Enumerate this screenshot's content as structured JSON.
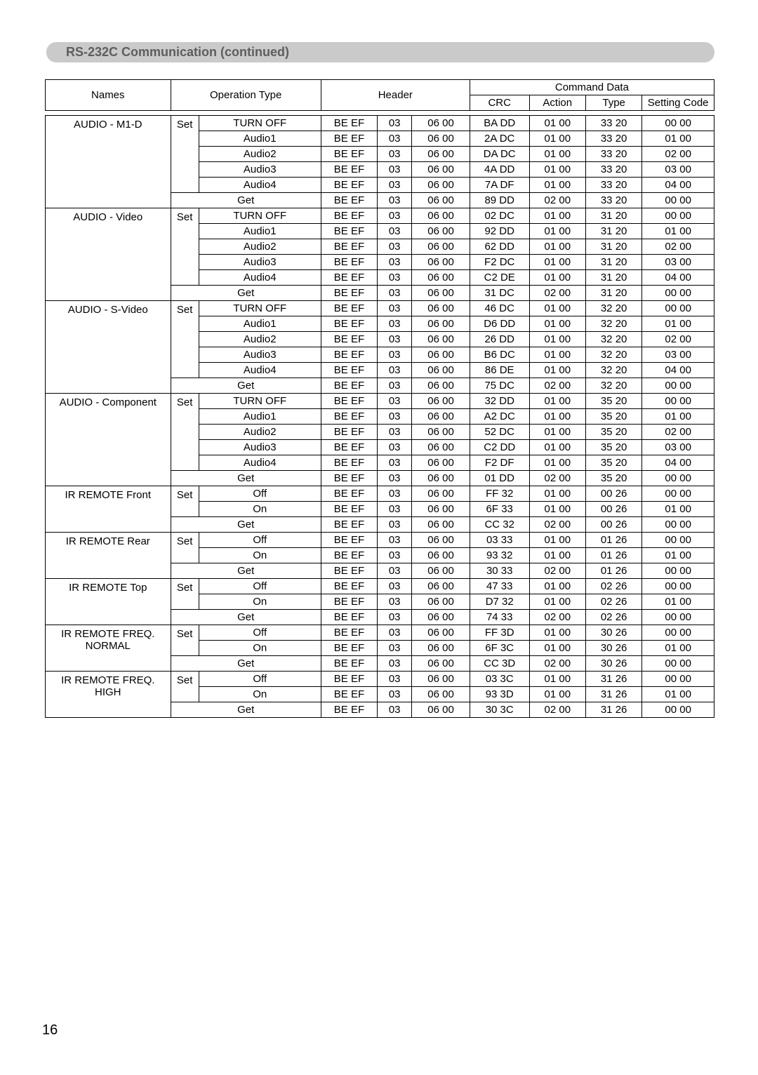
{
  "section_title": "RS-232C Communication (continued)",
  "page_number": "16",
  "colors": {
    "header_bg": "#cacaca",
    "header_text": "#5e5e5e",
    "page_bg": "#ffffff",
    "border": "#000000"
  },
  "header": {
    "names": "Names",
    "operation_type": "Operation Type",
    "header": "Header",
    "command_data": "Command Data",
    "crc": "CRC",
    "action": "Action",
    "type": "Type",
    "setting_code": "Setting Code"
  },
  "groups": [
    {
      "name": "AUDIO - M1-D",
      "set_label": "Set",
      "rows": [
        {
          "op": "TURN OFF",
          "h1": "BE  EF",
          "h2": "03",
          "h3": "06  00",
          "crc": "BA DD",
          "action": "01 00",
          "type": "33 20",
          "sc": "00 00"
        },
        {
          "op": "Audio1",
          "h1": "BE  EF",
          "h2": "03",
          "h3": "06  00",
          "crc": "2A DC",
          "action": "01 00",
          "type": "33 20",
          "sc": "01 00"
        },
        {
          "op": "Audio2",
          "h1": "BE  EF",
          "h2": "03",
          "h3": "06  00",
          "crc": "DA DC",
          "action": "01 00",
          "type": "33 20",
          "sc": "02 00"
        },
        {
          "op": "Audio3",
          "h1": "BE  EF",
          "h2": "03",
          "h3": "06  00",
          "crc": "4A DD",
          "action": "01 00",
          "type": "33 20",
          "sc": "03 00"
        },
        {
          "op": "Audio4",
          "h1": "BE  EF",
          "h2": "03",
          "h3": "06  00",
          "crc": "7A DF",
          "action": "01 00",
          "type": "33 20",
          "sc": "04 00"
        }
      ],
      "get_row": {
        "op": "Get",
        "h1": "BE  EF",
        "h2": "03",
        "h3": "06  00",
        "crc": "89 DD",
        "action": "02 00",
        "type": "33 20",
        "sc": "00 00"
      }
    },
    {
      "name": "AUDIO - Video",
      "set_label": "Set",
      "rows": [
        {
          "op": "TURN OFF",
          "h1": "BE  EF",
          "h2": "03",
          "h3": "06  00",
          "crc": "02 DC",
          "action": "01 00",
          "type": "31 20",
          "sc": "00 00"
        },
        {
          "op": "Audio1",
          "h1": "BE  EF",
          "h2": "03",
          "h3": "06  00",
          "crc": "92 DD",
          "action": "01 00",
          "type": "31 20",
          "sc": "01 00"
        },
        {
          "op": "Audio2",
          "h1": "BE  EF",
          "h2": "03",
          "h3": "06  00",
          "crc": "62 DD",
          "action": "01 00",
          "type": "31 20",
          "sc": "02 00"
        },
        {
          "op": "Audio3",
          "h1": "BE  EF",
          "h2": "03",
          "h3": "06  00",
          "crc": "F2 DC",
          "action": "01 00",
          "type": "31 20",
          "sc": "03 00"
        },
        {
          "op": "Audio4",
          "h1": "BE  EF",
          "h2": "03",
          "h3": "06  00",
          "crc": "C2 DE",
          "action": "01 00",
          "type": "31 20",
          "sc": "04 00"
        }
      ],
      "get_row": {
        "op": "Get",
        "h1": "BE  EF",
        "h2": "03",
        "h3": "06  00",
        "crc": "31 DC",
        "action": "02 00",
        "type": "31 20",
        "sc": "00 00"
      }
    },
    {
      "name": "AUDIO - S-Video",
      "set_label": "Set",
      "rows": [
        {
          "op": "TURN OFF",
          "h1": "BE  EF",
          "h2": "03",
          "h3": "06  00",
          "crc": "46 DC",
          "action": "01 00",
          "type": "32 20",
          "sc": "00 00"
        },
        {
          "op": "Audio1",
          "h1": "BE  EF",
          "h2": "03",
          "h3": "06  00",
          "crc": "D6 DD",
          "action": "01 00",
          "type": "32 20",
          "sc": "01 00"
        },
        {
          "op": "Audio2",
          "h1": "BE  EF",
          "h2": "03",
          "h3": "06  00",
          "crc": "26 DD",
          "action": "01 00",
          "type": "32 20",
          "sc": "02 00"
        },
        {
          "op": "Audio3",
          "h1": "BE  EF",
          "h2": "03",
          "h3": "06  00",
          "crc": "B6 DC",
          "action": "01 00",
          "type": "32 20",
          "sc": "03 00"
        },
        {
          "op": "Audio4",
          "h1": "BE  EF",
          "h2": "03",
          "h3": "06  00",
          "crc": "86 DE",
          "action": "01 00",
          "type": "32 20",
          "sc": "04 00"
        }
      ],
      "get_row": {
        "op": "Get",
        "h1": "BE  EF",
        "h2": "03",
        "h3": "06  00",
        "crc": "75 DC",
        "action": "02 00",
        "type": "32 20",
        "sc": "00 00"
      }
    },
    {
      "name": "AUDIO - Component",
      "set_label": "Set",
      "rows": [
        {
          "op": "TURN OFF",
          "h1": "BE  EF",
          "h2": "03",
          "h3": "06  00",
          "crc": "32 DD",
          "action": "01 00",
          "type": "35 20",
          "sc": "00 00"
        },
        {
          "op": "Audio1",
          "h1": "BE  EF",
          "h2": "03",
          "h3": "06  00",
          "crc": "A2 DC",
          "action": "01 00",
          "type": "35 20",
          "sc": "01 00"
        },
        {
          "op": "Audio2",
          "h1": "BE  EF",
          "h2": "03",
          "h3": "06  00",
          "crc": "52 DC",
          "action": "01 00",
          "type": "35 20",
          "sc": "02 00"
        },
        {
          "op": "Audio3",
          "h1": "BE  EF",
          "h2": "03",
          "h3": "06  00",
          "crc": "C2 DD",
          "action": "01 00",
          "type": "35 20",
          "sc": "03 00"
        },
        {
          "op": "Audio4",
          "h1": "BE  EF",
          "h2": "03",
          "h3": "06  00",
          "crc": "F2 DF",
          "action": "01 00",
          "type": "35 20",
          "sc": "04 00"
        }
      ],
      "get_row": {
        "op": "Get",
        "h1": "BE  EF",
        "h2": "03",
        "h3": "06  00",
        "crc": "01 DD",
        "action": "02 00",
        "type": "35 20",
        "sc": "00 00"
      }
    },
    {
      "name": "IR REMOTE Front",
      "set_label": "Set",
      "rows": [
        {
          "op": "Off",
          "h1": "BE  EF",
          "h2": "03",
          "h3": "06  00",
          "crc": "FF  32",
          "action": "01 00",
          "type": "00 26",
          "sc": "00 00"
        },
        {
          "op": "On",
          "h1": "BE  EF",
          "h2": "03",
          "h3": "06  00",
          "crc": "6F  33",
          "action": "01 00",
          "type": "00 26",
          "sc": "01 00"
        }
      ],
      "get_row": {
        "op": "Get",
        "h1": "BE  EF",
        "h2": "03",
        "h3": "06  00",
        "crc": "CC  32",
        "action": "02 00",
        "type": "00 26",
        "sc": "00 00"
      }
    },
    {
      "name": "IR REMOTE Rear",
      "set_label": "Set",
      "rows": [
        {
          "op": "Off",
          "h1": "BE  EF",
          "h2": "03",
          "h3": "06  00",
          "crc": "03  33",
          "action": "01 00",
          "type": "01 26",
          "sc": "00 00"
        },
        {
          "op": "On",
          "h1": "BE  EF",
          "h2": "03",
          "h3": "06  00",
          "crc": "93  32",
          "action": "01 00",
          "type": "01 26",
          "sc": "01 00"
        }
      ],
      "get_row": {
        "op": "Get",
        "h1": "BE  EF",
        "h2": "03",
        "h3": "06  00",
        "crc": "30  33",
        "action": "02 00",
        "type": "01 26",
        "sc": "00 00"
      }
    },
    {
      "name": "IR REMOTE Top",
      "set_label": "Set",
      "rows": [
        {
          "op": "Off",
          "h1": "BE  EF",
          "h2": "03",
          "h3": "06  00",
          "crc": "47  33",
          "action": "01 00",
          "type": "02 26",
          "sc": "00 00"
        },
        {
          "op": "On",
          "h1": "BE  EF",
          "h2": "03",
          "h3": "06  00",
          "crc": "D7  32",
          "action": "01 00",
          "type": "02 26",
          "sc": "01 00"
        }
      ],
      "get_row": {
        "op": "Get",
        "h1": "BE  EF",
        "h2": "03",
        "h3": "06  00",
        "crc": "74  33",
        "action": "02 00",
        "type": "02 26",
        "sc": "00 00"
      }
    },
    {
      "name": "IR REMOTE FREQ.\nNORMAL",
      "set_label": "Set",
      "rows": [
        {
          "op": "Off",
          "h1": "BE  EF",
          "h2": "03",
          "h3": "06  00",
          "crc": "FF 3D",
          "action": "01 00",
          "type": "30 26",
          "sc": "00 00"
        },
        {
          "op": "On",
          "h1": "BE  EF",
          "h2": "03",
          "h3": "06  00",
          "crc": "6F 3C",
          "action": "01 00",
          "type": "30 26",
          "sc": "01 00"
        }
      ],
      "get_row": {
        "op": "Get",
        "h1": "BE  EF",
        "h2": "03",
        "h3": "06  00",
        "crc": "CC 3D",
        "action": "02 00",
        "type": "30 26",
        "sc": "00 00"
      }
    },
    {
      "name": "IR REMOTE FREQ.\nHIGH",
      "set_label": "Set",
      "rows": [
        {
          "op": "Off",
          "h1": "BE  EF",
          "h2": "03",
          "h3": "06  00",
          "crc": "03 3C",
          "action": "01 00",
          "type": "31 26",
          "sc": "00 00"
        },
        {
          "op": "On",
          "h1": "BE  EF",
          "h2": "03",
          "h3": "06  00",
          "crc": "93 3D",
          "action": "01 00",
          "type": "31 26",
          "sc": "01 00"
        }
      ],
      "get_row": {
        "op": "Get",
        "h1": "BE  EF",
        "h2": "03",
        "h3": "06  00",
        "crc": "30 3C",
        "action": "02 00",
        "type": "31 26",
        "sc": "00 00"
      }
    }
  ]
}
